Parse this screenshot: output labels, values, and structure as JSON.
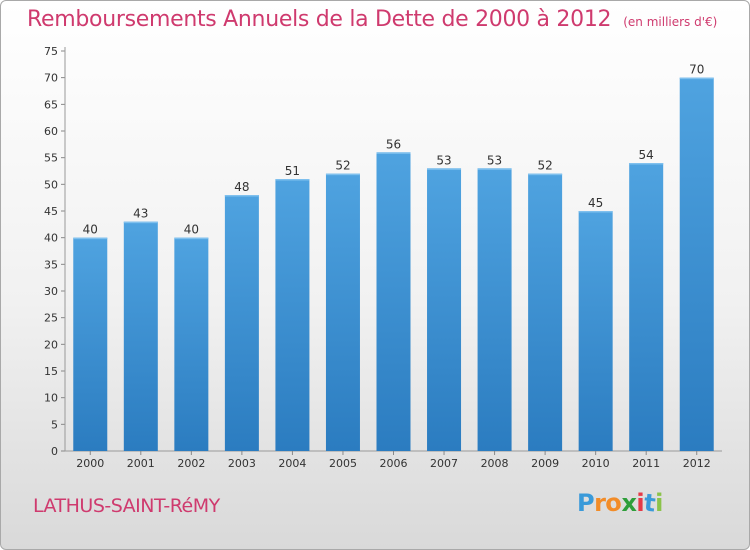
{
  "header": {
    "title": "Remboursements Annuels de la Dette de 2000 à 2012",
    "units": "(en milliers d'€)"
  },
  "footer": {
    "commune": "LATHUS-SAINT-RéMY",
    "brand": "Proxiti",
    "brand_colors": [
      "#3a9ad9",
      "#f28c28",
      "#f28c28",
      "#2e9e3a",
      "#e63946",
      "#3a9ad9",
      "#8bc34a"
    ]
  },
  "colors": {
    "bar": "#4fa3e0",
    "bar_dark": "#2b7cc0",
    "accent": "#cf3a6e",
    "grid": "#cccccc"
  },
  "chart_data": {
    "type": "bar",
    "title": "Remboursements Annuels de la Dette de 2000 à 2012",
    "subtitle": "(en milliers d'€)",
    "xlabel": "",
    "ylabel": "",
    "categories": [
      "2000",
      "2001",
      "2002",
      "2003",
      "2004",
      "2005",
      "2006",
      "2007",
      "2008",
      "2009",
      "2010",
      "2011",
      "2012"
    ],
    "values": [
      40,
      43,
      40,
      48,
      51,
      52,
      56,
      53,
      53,
      52,
      45,
      54,
      70
    ],
    "ylim": [
      0,
      75
    ],
    "yticks": [
      0,
      5,
      10,
      15,
      20,
      25,
      30,
      35,
      40,
      45,
      50,
      55,
      60,
      65,
      70,
      75
    ],
    "grid": false,
    "data_labels": true
  }
}
